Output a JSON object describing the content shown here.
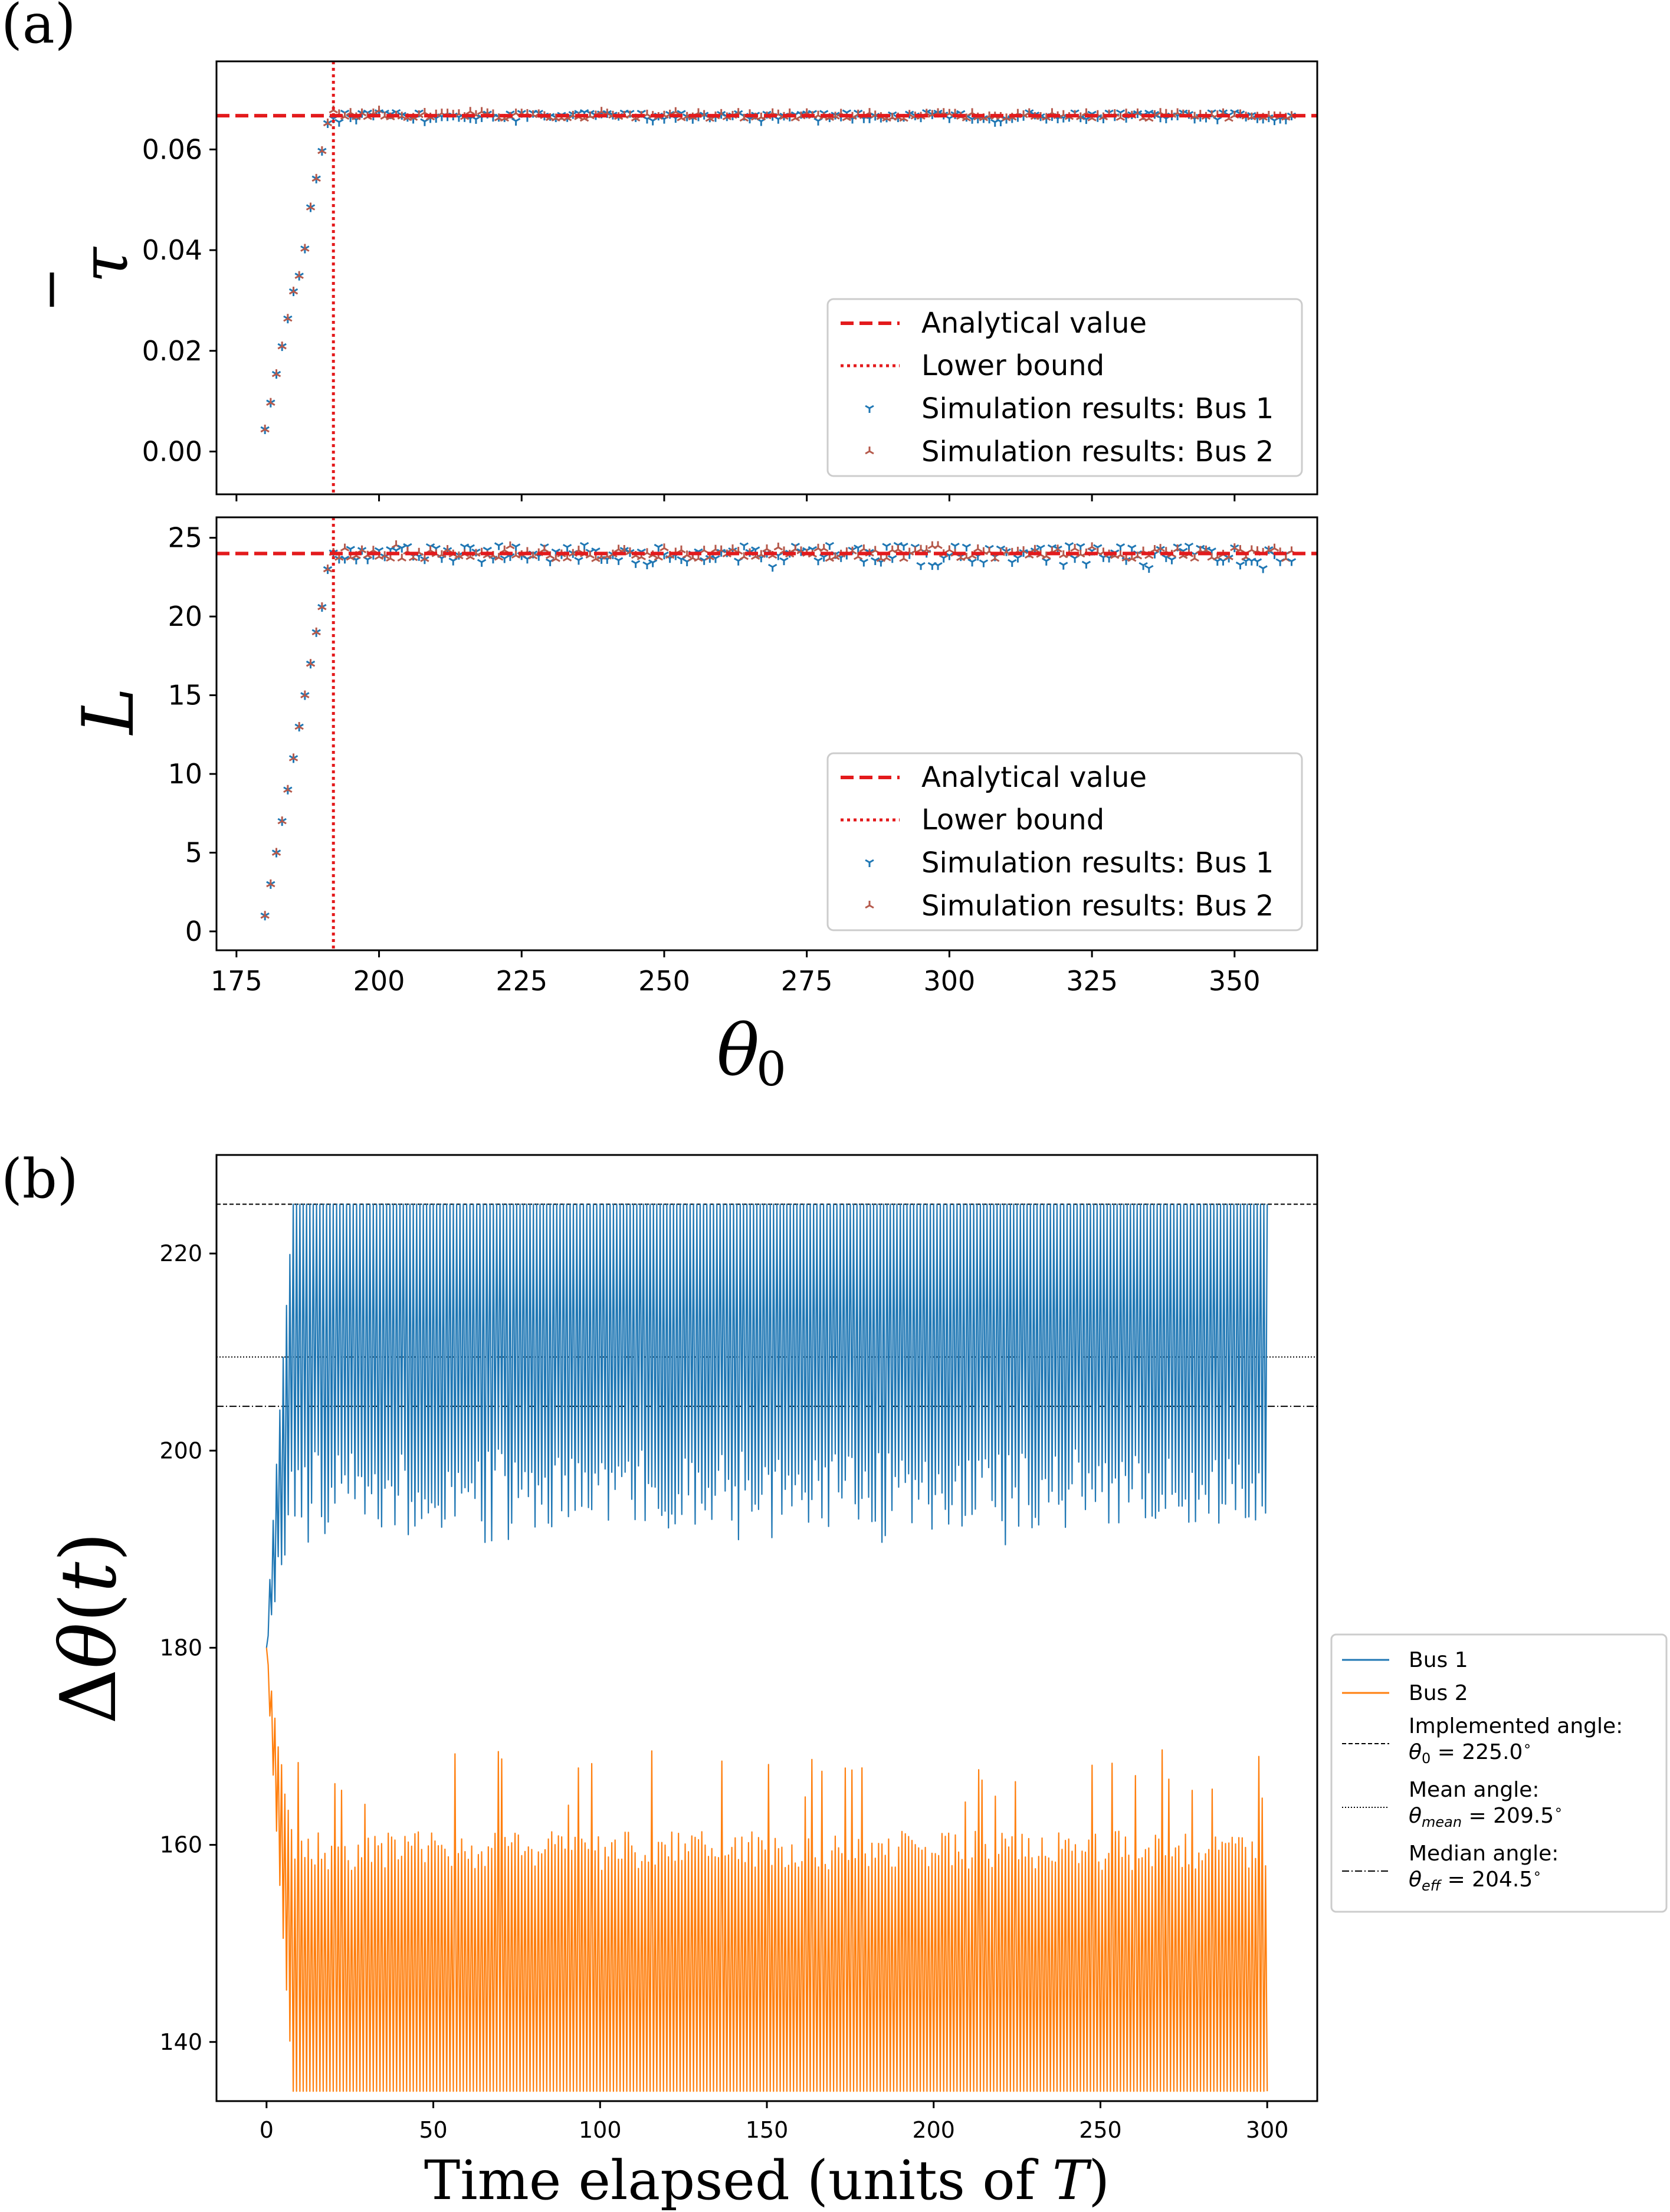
{
  "panel_labels": {
    "a": "(a)",
    "b": "(b)"
  },
  "chart_data": [
    {
      "id": "tau",
      "type": "scatter",
      "ylabel": "τ̄",
      "xlabel": "",
      "xlim": [
        171.5,
        364.5
      ],
      "ylim": [
        -0.0085,
        0.0775
      ],
      "xticks": [
        175,
        200,
        225,
        250,
        275,
        300,
        325,
        350
      ],
      "yticks": [
        0.0,
        0.02,
        0.04,
        0.06
      ],
      "ytick_labels": [
        "0.00",
        "0.02",
        "0.04",
        "0.06"
      ],
      "analytical_value": 0.0667,
      "lower_bound": 192,
      "rise": {
        "x": [
          180,
          181,
          182,
          183,
          184,
          185,
          186,
          187,
          188,
          189,
          190,
          191
        ],
        "y": [
          0.0044,
          0.0097,
          0.0154,
          0.0209,
          0.0264,
          0.0318,
          0.0349,
          0.0403,
          0.0485,
          0.0542,
          0.0597,
          0.0652
        ]
      },
      "plateau": {
        "x_start": 192,
        "x_end": 360,
        "x_step": 1,
        "value": 0.0667,
        "bus1_noise": 0.0007,
        "bus2_noise": 0.0006
      },
      "legend": [
        "Analytical value",
        "Lower bound",
        "Simulation results: Bus 1",
        "Simulation results: Bus 2"
      ],
      "legend_position": "lower-right"
    },
    {
      "id": "L",
      "type": "scatter",
      "ylabel": "L",
      "xlabel": "θ₀",
      "xlim": [
        171.5,
        364.5
      ],
      "ylim": [
        -1.2,
        26.3
      ],
      "xticks": [
        175,
        200,
        225,
        250,
        275,
        300,
        325,
        350
      ],
      "yticks": [
        0,
        5,
        10,
        15,
        20,
        25
      ],
      "ytick_labels": [
        "0",
        "5",
        "10",
        "15",
        "20",
        "25"
      ],
      "analytical_value": 24,
      "lower_bound": 192,
      "rise": {
        "x": [
          180,
          181,
          182,
          183,
          184,
          185,
          186,
          187,
          188,
          189,
          190,
          191
        ],
        "y": [
          1,
          3,
          5,
          7,
          9,
          11,
          13,
          15,
          17,
          19,
          20.6,
          23
        ]
      },
      "plateau": {
        "x_start": 192,
        "x_end": 360,
        "x_step": 1,
        "value": 24,
        "bus1_noise": 0.55,
        "bus2_noise": 0.35
      },
      "legend": [
        "Analytical value",
        "Lower bound",
        "Simulation results: Bus 1",
        "Simulation results: Bus 2"
      ],
      "legend_position": "lower-right"
    },
    {
      "id": "delta_theta",
      "type": "line",
      "ylabel": "Δθ(t)",
      "xlabel": "Time elapsed (units of T)",
      "xlim": [
        -15,
        315
      ],
      "ylim": [
        134,
        230
      ],
      "xticks": [
        0,
        50,
        100,
        150,
        200,
        250,
        300
      ],
      "yticks": [
        140,
        160,
        180,
        200,
        220
      ],
      "series": [
        {
          "name": "Bus 1",
          "color": "#1f77b4",
          "start": 180,
          "max": 225.0,
          "low_typical": 197,
          "low_extreme": 190
        },
        {
          "name": "Bus 2",
          "color": "#ff7f0e",
          "start": 180,
          "min": 135.0,
          "high_typical": 159,
          "high_extreme": 170
        }
      ],
      "reference_lines": [
        {
          "name": "Implemented angle:",
          "formula": "θ₀ = 225.0°",
          "value": 225.0,
          "style": "dashed"
        },
        {
          "name": "Mean angle:",
          "formula": "θmean = 209.5°",
          "value": 209.5,
          "style": "dotted"
        },
        {
          "name": "Median angle:",
          "formula": "θeff = 204.5°",
          "value": 204.5,
          "style": "dashdot"
        }
      ],
      "t_end": 300,
      "samples_per_unit": 2,
      "legend_position": "outside-right"
    }
  ]
}
